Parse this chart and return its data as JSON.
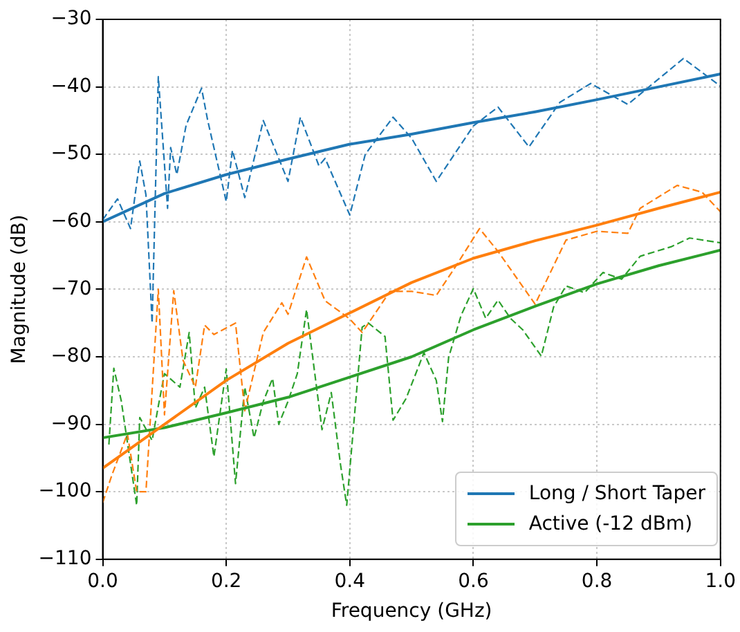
{
  "chart_data": {
    "type": "line",
    "xlabel": "Frequency (GHz)",
    "ylabel": "Magnitude (dB)",
    "xlim": [
      0,
      1
    ],
    "xticks": [
      {
        "value": 0,
        "label": "0.0"
      },
      0.2,
      0.4,
      0.6,
      0.8,
      {
        "value": 1,
        "label": "1.0"
      }
    ],
    "ylim": [
      -110,
      -30
    ],
    "yticks": [
      -110,
      -100,
      -90,
      -80,
      -70,
      -60,
      -50,
      -40,
      -30
    ],
    "grid": true,
    "legend": "bottom right",
    "marker": "none",
    "series": [
      {
        "color": "#1f77b4",
        "line_style": "dashed",
        "x": [
          0,
          0.024,
          0.045,
          0.06,
          0.07,
          0.08,
          0.09,
          0.105,
          0.11,
          0.12,
          0.135,
          0.16,
          0.17,
          0.2,
          0.21,
          0.23,
          0.26,
          0.3,
          0.32,
          0.35,
          0.36,
          0.4,
          0.425,
          0.47,
          0.5,
          0.54,
          0.6,
          0.64,
          0.69,
          0.74,
          0.79,
          0.85,
          0.94,
          1.0
        ],
        "values": [
          -59.7,
          -56.6,
          -61,
          -51,
          -56,
          -75,
          -38.5,
          -58,
          -49,
          -53,
          -45.7,
          -40.2,
          -45,
          -57,
          -49.4,
          -56.4,
          -45,
          -54,
          -44.5,
          -51.7,
          -50.6,
          -59,
          -50,
          -44.5,
          -47.6,
          -54,
          -45.8,
          -43,
          -48.9,
          -42.3,
          -39.5,
          -42.6,
          -35.8,
          -39.9
        ]
      },
      {
        "color": "#ff7f0e",
        "line_style": "dashed",
        "x": [
          0,
          0.015,
          0.04,
          0.055,
          0.07,
          0.09,
          0.1,
          0.115,
          0.13,
          0.15,
          0.165,
          0.18,
          0.215,
          0.23,
          0.26,
          0.29,
          0.3,
          0.33,
          0.36,
          0.4,
          0.42,
          0.44,
          0.465,
          0.5,
          0.54,
          0.57,
          0.61,
          0.64,
          0.7,
          0.75,
          0.8,
          0.85,
          0.87,
          0.93,
          0.97,
          1.0
        ],
        "values": [
          -101.6,
          -97.5,
          -91.4,
          -100,
          -100,
          -70,
          -88.6,
          -70.2,
          -80.5,
          -84.5,
          -75.3,
          -76.7,
          -75,
          -88,
          -76.4,
          -72,
          -73.7,
          -65.2,
          -71.7,
          -74.4,
          -76.4,
          -73.7,
          -70.3,
          -70.3,
          -70.9,
          -66.8,
          -61,
          -64.4,
          -72.2,
          -62.7,
          -61.4,
          -61.7,
          -58,
          -54.6,
          -55.6,
          -58.5
        ]
      },
      {
        "color": "#2ca02c",
        "line_style": "dashed",
        "x": [
          0.01,
          0.018,
          0.03,
          0.055,
          0.06,
          0.08,
          0.09,
          0.1,
          0.125,
          0.14,
          0.15,
          0.165,
          0.18,
          0.2,
          0.215,
          0.23,
          0.245,
          0.26,
          0.275,
          0.285,
          0.3,
          0.315,
          0.33,
          0.355,
          0.37,
          0.385,
          0.395,
          0.42,
          0.43,
          0.457,
          0.47,
          0.491,
          0.52,
          0.54,
          0.55,
          0.56,
          0.58,
          0.6,
          0.62,
          0.64,
          0.66,
          0.68,
          0.71,
          0.73,
          0.75,
          0.78,
          0.81,
          0.84,
          0.87,
          0.92,
          0.95,
          1.0
        ],
        "values": [
          -93,
          -81.7,
          -86.5,
          -102,
          -89,
          -92.4,
          -87.3,
          -82.5,
          -84.5,
          -76.4,
          -87.6,
          -84.5,
          -94.8,
          -81.8,
          -98.8,
          -84.5,
          -92,
          -86.6,
          -83.2,
          -90,
          -86.6,
          -82.5,
          -73,
          -90.8,
          -85.3,
          -96,
          -102,
          -75.6,
          -75,
          -77,
          -89.4,
          -86.2,
          -79.4,
          -83.5,
          -89.6,
          -80.1,
          -73.9,
          -69.9,
          -74.3,
          -71.6,
          -74.3,
          -76,
          -79.9,
          -72.6,
          -69.5,
          -70.5,
          -67.5,
          -68.5,
          -65.1,
          -63.7,
          -62.4,
          -63.1
        ]
      },
      {
        "name": "Long / Short Taper",
        "color": "#1f77b4",
        "line_style": "solid",
        "x": [
          0,
          0.1,
          0.2,
          0.3,
          0.4,
          0.5,
          0.6,
          0.7,
          0.8,
          0.9,
          1.0
        ],
        "values": [
          -60,
          -55.8,
          -53,
          -50.7,
          -48.5,
          -47,
          -45.3,
          -43.7,
          -41.9,
          -40,
          -38.1
        ]
      },
      {
        "color": "#ff7f0e",
        "line_style": "solid",
        "x": [
          0,
          0.1,
          0.2,
          0.3,
          0.4,
          0.5,
          0.6,
          0.7,
          0.8,
          0.9,
          1.0
        ],
        "values": [
          -96.5,
          -90,
          -83.5,
          -78,
          -73.5,
          -69,
          -65.4,
          -62.8,
          -60.5,
          -58,
          -55.6
        ]
      },
      {
        "name": "Active (-12 dBm)",
        "color": "#2ca02c",
        "line_style": "solid",
        "x": [
          0,
          0.1,
          0.2,
          0.3,
          0.4,
          0.5,
          0.6,
          0.7,
          0.8,
          0.9,
          1.0
        ],
        "values": [
          -92,
          -90.5,
          -88.3,
          -86,
          -83,
          -80,
          -76,
          -72.5,
          -69.2,
          -66.5,
          -64.2
        ]
      }
    ]
  }
}
